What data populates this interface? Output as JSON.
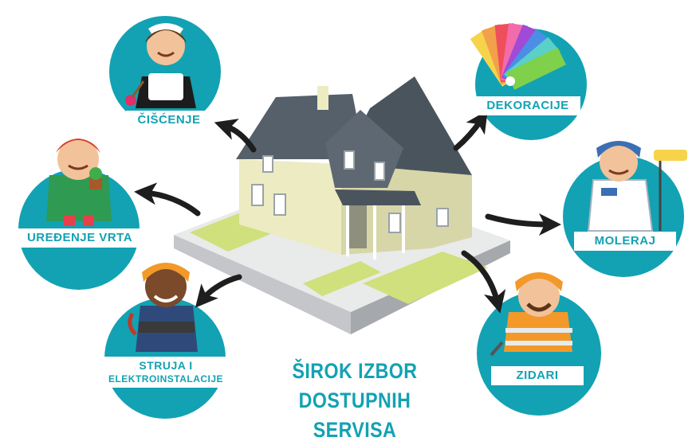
{
  "services": {
    "ciscenje": "ČIŠĆENJE",
    "dekoracije": "DEKORACIJE",
    "uredjenje_vrta": "UREĐENJE VRTA",
    "moleraj": "MOLERAJ",
    "struja_line1": "STRUJA I",
    "struja_line2": "ELEKTROINSTALACIJE",
    "zidari": "ZIDARI"
  },
  "tagline": {
    "line1": "ŠIROK IZBOR",
    "line2": "DOSTUPNIH SERVISA"
  },
  "colors": {
    "teal": "#12a2b3",
    "arrow": "#1e1e1e",
    "lawn": "#cfe07c",
    "roof": "#55606a",
    "wall": "#ecebc2"
  },
  "icons": [
    "cleaning-lady-icon",
    "paint-palette-icon",
    "gardener-icon",
    "painter-icon",
    "electrician-icon",
    "bricklayer-icon",
    "house-icon"
  ]
}
